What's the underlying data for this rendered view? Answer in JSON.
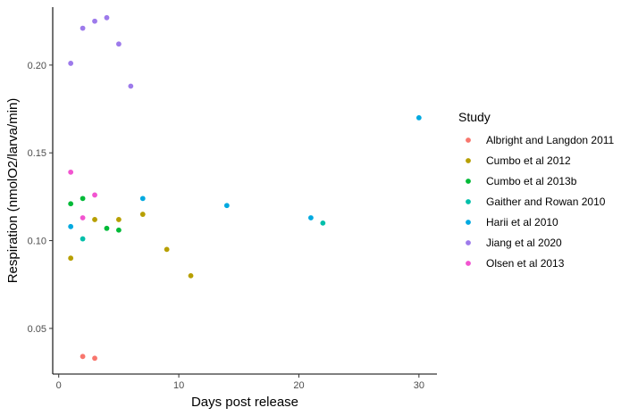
{
  "chart_data": {
    "type": "scatter",
    "xlabel": "Days post release",
    "ylabel": "Respiration (nmolO2/larva/min)",
    "xlim": [
      -0.5,
      31.5
    ],
    "ylim": [
      0.024,
      0.233
    ],
    "x_ticks": [
      0,
      10,
      20,
      30
    ],
    "x_tick_labels": [
      "0",
      "10",
      "20",
      "30"
    ],
    "y_ticks": [
      0.05,
      0.1,
      0.15,
      0.2
    ],
    "y_tick_labels": [
      "0.05",
      "0.10",
      "0.15",
      "0.20"
    ],
    "grid": false,
    "legend": {
      "title": "Study",
      "position": "right"
    },
    "series": [
      {
        "name": "Albright and Langdon 2011",
        "color": "#F8766D",
        "points": [
          [
            2,
            0.034
          ],
          [
            3,
            0.033
          ]
        ]
      },
      {
        "name": "Cumbo et al 2012",
        "color": "#B79F00",
        "points": [
          [
            1,
            0.09
          ],
          [
            3,
            0.112
          ],
          [
            5,
            0.112
          ],
          [
            7,
            0.115
          ],
          [
            9,
            0.095
          ],
          [
            11,
            0.08
          ]
        ]
      },
      {
        "name": "Cumbo et al 2013b",
        "color": "#00BA38",
        "points": [
          [
            1,
            0.121
          ],
          [
            2,
            0.124
          ],
          [
            4,
            0.107
          ],
          [
            5,
            0.106
          ]
        ]
      },
      {
        "name": "Gaither and Rowan 2010",
        "color": "#00BFAA",
        "points": [
          [
            2,
            0.101
          ],
          [
            22,
            0.11
          ]
        ]
      },
      {
        "name": "Harii et al 2010",
        "color": "#00A9E0",
        "points": [
          [
            1,
            0.108
          ],
          [
            7,
            0.124
          ],
          [
            14,
            0.12
          ],
          [
            21,
            0.113
          ],
          [
            30,
            0.17
          ]
        ]
      },
      {
        "name": "Jiang et al 2020",
        "color": "#9D7AEB",
        "points": [
          [
            1,
            0.201
          ],
          [
            2,
            0.221
          ],
          [
            3,
            0.225
          ],
          [
            4,
            0.227
          ],
          [
            5,
            0.212
          ],
          [
            6,
            0.188
          ]
        ]
      },
      {
        "name": "Olsen et al 2013",
        "color": "#F254D0",
        "points": [
          [
            1,
            0.139
          ],
          [
            2,
            0.113
          ],
          [
            3,
            0.126
          ]
        ]
      }
    ]
  }
}
